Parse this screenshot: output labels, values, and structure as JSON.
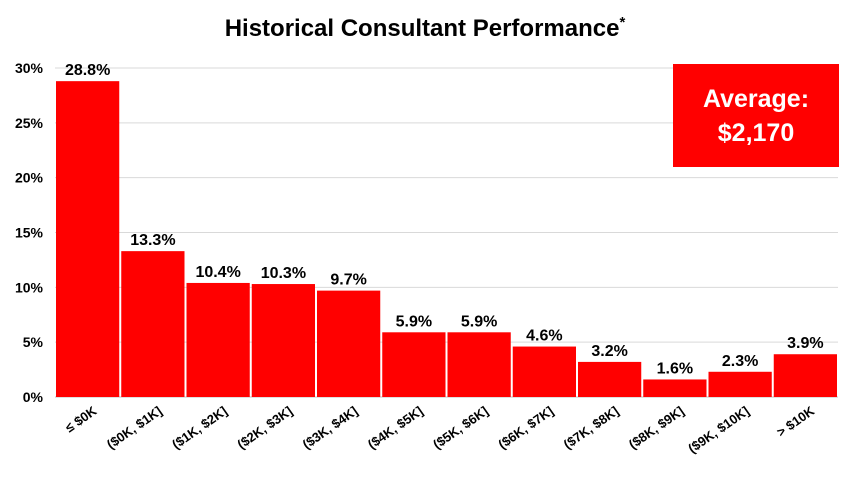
{
  "colors": {
    "bar": "#ff0000",
    "grid": "#d9d9d9",
    "text": "#000000",
    "box_text": "#ffffff"
  },
  "title_main": "Historical Consultant Performance",
  "title_mark": "*",
  "average": {
    "label": "Average:",
    "value": "$2,170"
  },
  "chart_data": {
    "type": "bar",
    "title": "Historical Consultant Performance*",
    "xlabel": "",
    "ylabel": "",
    "categories": [
      "≤ $0K",
      "($0K, $1K]",
      "($1K, $2K]",
      "($2K, $3K]",
      "($3K, $4K]",
      "($4K, $5K]",
      "($5K, $6K]",
      "($6K, $7K]",
      "($7K, $8K]",
      "($8K, $9K]",
      "($9K, $10K]",
      "> $10K"
    ],
    "values": [
      28.8,
      13.3,
      10.4,
      10.3,
      9.7,
      5.9,
      5.9,
      4.6,
      3.2,
      1.6,
      2.3,
      3.9
    ],
    "value_labels": [
      "28.8%",
      "13.3%",
      "10.4%",
      "10.3%",
      "9.7%",
      "5.9%",
      "5.9%",
      "4.6%",
      "3.2%",
      "1.6%",
      "2.3%",
      "3.9%"
    ],
    "ylim": [
      0,
      30
    ],
    "yticks": [
      0,
      5,
      10,
      15,
      20,
      25,
      30
    ],
    "ytick_labels": [
      "0%",
      "5%",
      "10%",
      "15%",
      "20%",
      "25%",
      "30%"
    ],
    "grid": true,
    "legend": "none"
  }
}
